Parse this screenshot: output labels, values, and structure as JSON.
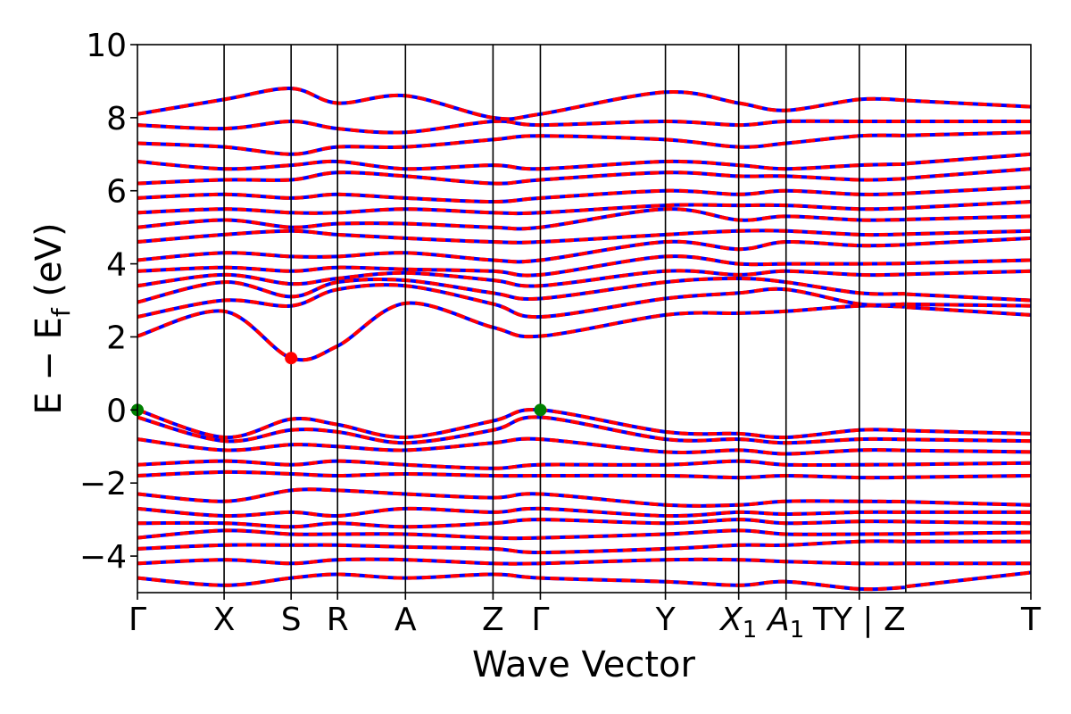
{
  "chart_data": {
    "type": "line",
    "xlabel": "Wave Vector",
    "ylabel": "E − E",
    "ylabel_sub": "f",
    "ylabel_unit": " (eV)",
    "ylim": [
      -5,
      10
    ],
    "y_ticks": [
      -4,
      -2,
      0,
      2,
      4,
      6,
      8,
      10
    ],
    "y_tick_labels": [
      "−4",
      "−2",
      "0",
      "2",
      "4",
      "6",
      "8",
      "10"
    ],
    "kpath": [
      {
        "label": "Γ",
        "x": 0.0
      },
      {
        "label": "X",
        "x": 0.097
      },
      {
        "label": "S",
        "x": 0.172
      },
      {
        "label": "R",
        "x": 0.224
      },
      {
        "label": "A",
        "x": 0.3
      },
      {
        "label": "Z",
        "x": 0.398
      },
      {
        "label": "Γ",
        "x": 0.451
      },
      {
        "label": "Y",
        "x": 0.591
      },
      {
        "label": "X",
        "sub": "1",
        "x": 0.673
      },
      {
        "label": "A",
        "sub": "1",
        "x": 0.726
      },
      {
        "label": "TY | Z",
        "x": 0.808
      },
      {
        "label": "T",
        "x": 1.0
      }
    ],
    "kpath_break": 0.86,
    "colors": {
      "spin_up": "#ff0000",
      "spin_down": "#0000ff",
      "vbm": "#008000",
      "cbm": "#ff0000"
    },
    "markers": [
      {
        "kind": "vbm",
        "x": 0.0,
        "y": 0.0
      },
      {
        "kind": "vbm",
        "x": 0.451,
        "y": 0.0
      },
      {
        "kind": "cbm",
        "x": 0.172,
        "y": 1.42
      }
    ],
    "series": [
      {
        "values": [
          2.02,
          2.7,
          1.42,
          1.75,
          2.92,
          2.26,
          2.02,
          2.6,
          2.65,
          2.7,
          2.85,
          2.6
        ]
      },
      {
        "values": [
          2.55,
          3.0,
          2.85,
          3.3,
          3.4,
          2.9,
          2.55,
          3.05,
          3.2,
          3.3,
          2.9,
          2.85
        ]
      },
      {
        "values": [
          2.95,
          3.5,
          3.1,
          3.5,
          3.55,
          3.2,
          3.05,
          3.5,
          3.6,
          3.5,
          3.2,
          3.0
        ]
      },
      {
        "values": [
          3.4,
          3.7,
          3.45,
          3.6,
          3.75,
          3.55,
          3.4,
          3.8,
          3.7,
          3.8,
          3.7,
          3.8
        ]
      },
      {
        "values": [
          3.8,
          3.9,
          3.8,
          3.9,
          3.85,
          3.8,
          3.7,
          4.2,
          4.0,
          4.0,
          4.0,
          4.1
        ]
      },
      {
        "values": [
          4.1,
          4.3,
          4.2,
          4.2,
          4.3,
          4.1,
          4.1,
          4.6,
          4.4,
          4.6,
          4.5,
          4.7
        ]
      },
      {
        "values": [
          4.6,
          4.8,
          4.9,
          4.8,
          4.7,
          4.6,
          4.6,
          4.8,
          4.9,
          4.9,
          4.8,
          4.9
        ]
      },
      {
        "values": [
          5.0,
          5.2,
          5.0,
          5.1,
          5.1,
          5.0,
          5.0,
          5.5,
          5.2,
          5.3,
          5.2,
          5.3
        ]
      },
      {
        "values": [
          5.4,
          5.5,
          5.4,
          5.4,
          5.5,
          5.4,
          5.4,
          5.6,
          5.6,
          5.6,
          5.5,
          5.7
        ]
      },
      {
        "values": [
          5.8,
          5.9,
          5.8,
          5.9,
          5.8,
          5.7,
          5.8,
          6.0,
          5.9,
          6.0,
          5.9,
          6.1
        ]
      },
      {
        "values": [
          6.2,
          6.3,
          6.3,
          6.5,
          6.4,
          6.2,
          6.3,
          6.5,
          6.4,
          6.4,
          6.3,
          6.6
        ]
      },
      {
        "values": [
          6.8,
          6.6,
          6.7,
          6.8,
          6.6,
          6.7,
          6.6,
          6.8,
          6.7,
          6.6,
          6.7,
          7.0
        ]
      },
      {
        "values": [
          7.3,
          7.2,
          7.0,
          7.2,
          7.2,
          7.4,
          7.5,
          7.4,
          7.2,
          7.3,
          7.5,
          7.6
        ]
      },
      {
        "values": [
          7.8,
          7.7,
          7.9,
          7.7,
          7.6,
          7.9,
          7.8,
          7.9,
          7.8,
          7.9,
          7.9,
          7.9
        ]
      },
      {
        "values": [
          8.1,
          8.5,
          8.8,
          8.4,
          8.6,
          8.0,
          8.1,
          8.7,
          8.4,
          8.2,
          8.5,
          8.3
        ]
      },
      {
        "values": [
          0.0,
          -0.75,
          -0.25,
          -0.4,
          -0.75,
          -0.3,
          0.0,
          -0.6,
          -0.65,
          -0.75,
          -0.55,
          -0.65
        ]
      },
      {
        "values": [
          -0.2,
          -0.85,
          -0.55,
          -0.6,
          -0.9,
          -0.55,
          -0.2,
          -0.8,
          -0.8,
          -0.9,
          -0.8,
          -0.85
        ]
      },
      {
        "values": [
          -0.8,
          -1.1,
          -0.95,
          -1.0,
          -1.1,
          -0.9,
          -0.8,
          -1.15,
          -1.1,
          -1.2,
          -1.1,
          -1.15
        ]
      },
      {
        "values": [
          -1.5,
          -1.4,
          -1.5,
          -1.4,
          -1.5,
          -1.6,
          -1.5,
          -1.5,
          -1.4,
          -1.5,
          -1.5,
          -1.45
        ]
      },
      {
        "values": [
          -1.8,
          -1.7,
          -1.75,
          -1.8,
          -1.75,
          -1.8,
          -1.8,
          -1.8,
          -1.85,
          -1.8,
          -1.85,
          -1.8
        ]
      },
      {
        "values": [
          -2.3,
          -2.5,
          -2.2,
          -2.2,
          -2.3,
          -2.4,
          -2.3,
          -2.6,
          -2.6,
          -2.5,
          -2.5,
          -2.6
        ]
      },
      {
        "values": [
          -2.7,
          -2.9,
          -2.8,
          -2.9,
          -2.7,
          -2.8,
          -2.7,
          -2.9,
          -2.8,
          -2.85,
          -2.8,
          -2.8
        ]
      },
      {
        "values": [
          -3.1,
          -3.1,
          -3.2,
          -3.1,
          -3.2,
          -3.1,
          -3.0,
          -3.1,
          -3.0,
          -3.1,
          -3.05,
          -3.1
        ]
      },
      {
        "values": [
          -3.5,
          -3.3,
          -3.4,
          -3.4,
          -3.4,
          -3.5,
          -3.5,
          -3.4,
          -3.3,
          -3.4,
          -3.4,
          -3.35
        ]
      },
      {
        "values": [
          -3.8,
          -3.7,
          -3.7,
          -3.7,
          -3.75,
          -3.8,
          -3.9,
          -3.8,
          -3.7,
          -3.7,
          -3.6,
          -3.6
        ]
      },
      {
        "values": [
          -4.2,
          -4.1,
          -4.2,
          -4.1,
          -4.1,
          -4.2,
          -4.2,
          -4.1,
          -4.1,
          -4.15,
          -4.2,
          -4.2
        ]
      },
      {
        "values": [
          -4.6,
          -4.8,
          -4.6,
          -4.5,
          -4.6,
          -4.5,
          -4.6,
          -4.7,
          -4.8,
          -4.7,
          -4.9,
          -4.45
        ]
      }
    ]
  }
}
